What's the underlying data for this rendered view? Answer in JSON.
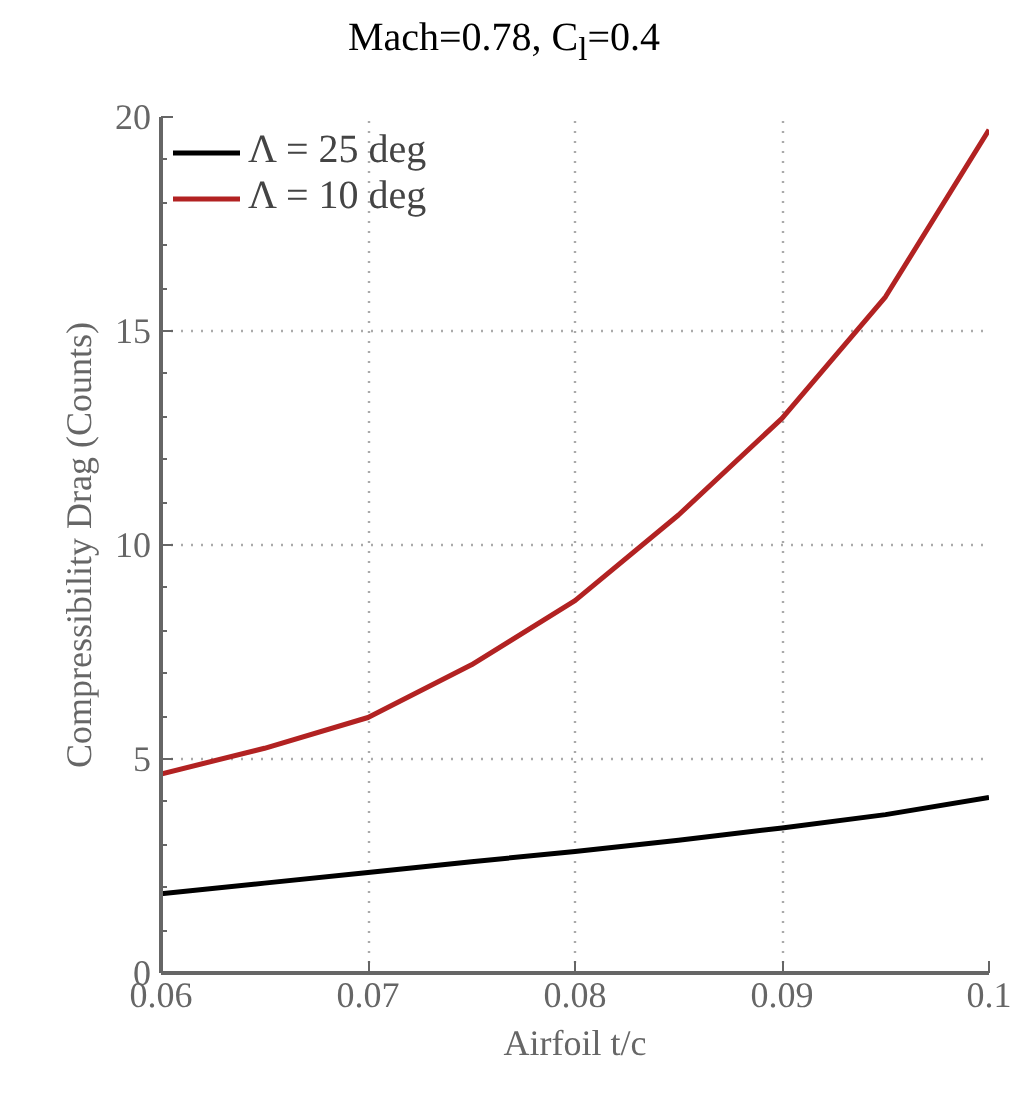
{
  "chart_data": {
    "type": "line",
    "title": "Mach=0.78, C$_{l}$=0.4",
    "xlabel": "Airfoil t/c",
    "ylabel": "Compressibility Drag (Counts)",
    "x": [
      0.06,
      0.065,
      0.07,
      0.075,
      0.08,
      0.085,
      0.09,
      0.095,
      0.1
    ],
    "series": [
      {
        "name": "Λ = 25 deg",
        "color": "#000000",
        "values": [
          1.85,
          2.1,
          2.35,
          2.6,
          2.84,
          3.1,
          3.39,
          3.7,
          4.1
        ]
      },
      {
        "name": "Λ = 10 deg",
        "color": "#b22222",
        "values": [
          4.65,
          5.25,
          5.97,
          7.2,
          8.7,
          10.7,
          12.96,
          15.8,
          19.7
        ]
      }
    ],
    "xlim": [
      0.06,
      0.1
    ],
    "ylim": [
      0,
      20
    ],
    "xticks": [
      0.06,
      0.07,
      0.08,
      0.09,
      0.1
    ],
    "yticks": [
      0,
      5,
      10,
      15,
      20
    ],
    "grid": true,
    "legend": "top left",
    "marker": "none",
    "line_style": "solid"
  }
}
